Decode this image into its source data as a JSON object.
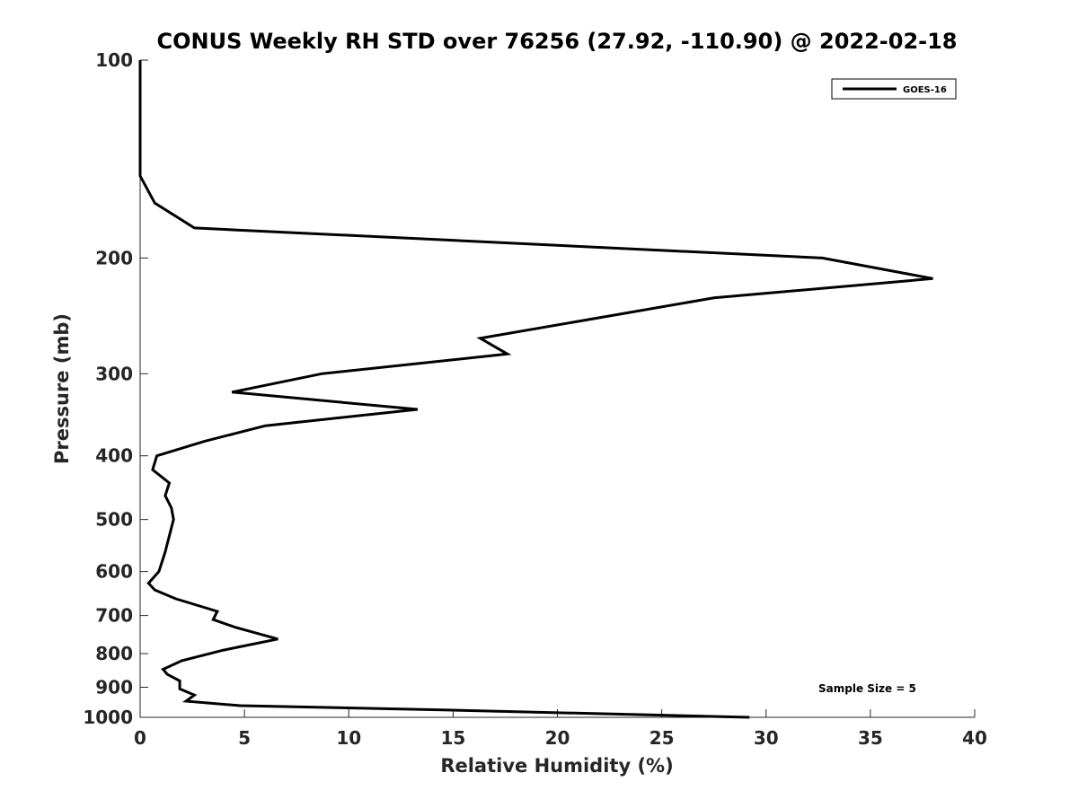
{
  "chart_data": {
    "type": "line",
    "title": "CONUS Weekly RH STD over 76256 (27.92, -110.90) @ 2022-02-18",
    "xlabel": "Relative Humidity (%)",
    "ylabel": "Pressure (mb)",
    "xlim": [
      0,
      40
    ],
    "ylim": [
      100,
      1000
    ],
    "yscale": "log",
    "y_reversed": true,
    "x_ticks": [
      0,
      5,
      10,
      15,
      20,
      25,
      30,
      35,
      40
    ],
    "x_tick_labels": [
      "0",
      "5",
      "10",
      "15",
      "20",
      "25",
      "30",
      "35",
      "40"
    ],
    "y_ticks": [
      100,
      200,
      300,
      400,
      500,
      600,
      700,
      800,
      900,
      1000
    ],
    "y_tick_labels": [
      "100",
      "200",
      "300",
      "400",
      "500",
      "600",
      "700",
      "800",
      "900",
      "1000"
    ],
    "grid": false,
    "legend_position": "top-right",
    "series": [
      {
        "name": "GOES-16",
        "color": "#000000",
        "points": [
          [
            0.0,
            100
          ],
          [
            0.0,
            150
          ],
          [
            0.7,
            165
          ],
          [
            2.6,
            180
          ],
          [
            32.7,
            200
          ],
          [
            38.0,
            215
          ],
          [
            27.5,
            230
          ],
          [
            16.3,
            265
          ],
          [
            17.6,
            280
          ],
          [
            8.7,
            300
          ],
          [
            4.4,
            320
          ],
          [
            13.3,
            340
          ],
          [
            6.0,
            360
          ],
          [
            3.1,
            380
          ],
          [
            0.8,
            400
          ],
          [
            0.6,
            420
          ],
          [
            1.4,
            440
          ],
          [
            1.2,
            460
          ],
          [
            1.5,
            480
          ],
          [
            1.6,
            500
          ],
          [
            1.2,
            560
          ],
          [
            0.9,
            600
          ],
          [
            0.4,
            625
          ],
          [
            0.7,
            640
          ],
          [
            1.7,
            660
          ],
          [
            3.7,
            690
          ],
          [
            3.5,
            710
          ],
          [
            4.6,
            730
          ],
          [
            6.6,
            760
          ],
          [
            4.0,
            790
          ],
          [
            2.0,
            820
          ],
          [
            1.1,
            845
          ],
          [
            1.3,
            860
          ],
          [
            1.9,
            880
          ],
          [
            1.9,
            905
          ],
          [
            2.6,
            925
          ],
          [
            2.2,
            945
          ],
          [
            4.8,
            960
          ],
          [
            15.0,
            975
          ],
          [
            29.2,
            1000
          ]
        ]
      }
    ],
    "annotations": [
      {
        "text": "Sample Size = 5",
        "position": "bottom-right"
      }
    ]
  }
}
